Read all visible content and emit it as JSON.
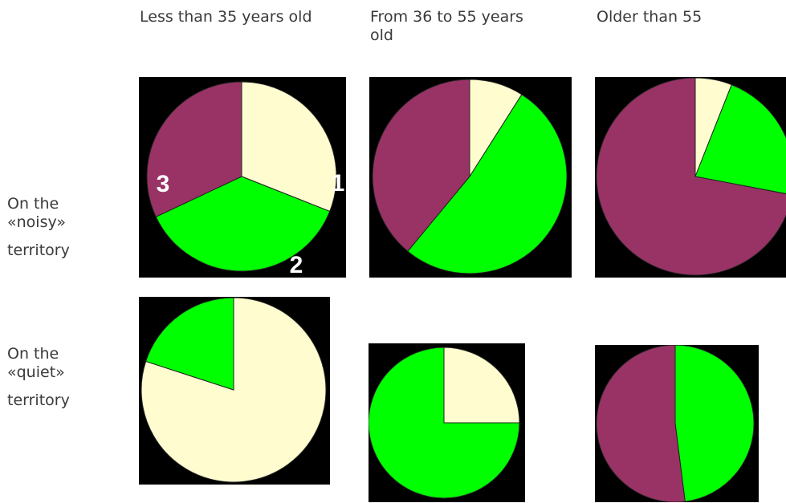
{
  "columns": [
    {
      "label": "Less than 35 years old"
    },
    {
      "label": "From 36 to 55 years"
    },
    {
      "label": "Older than 55"
    }
  ],
  "column_label_wrap": "old",
  "rows": [
    {
      "line1": "On the",
      "line2": "«noisy»",
      "line3": "territory"
    },
    {
      "line1": "On the",
      "line2": "«quiet»",
      "line3": "territory"
    }
  ],
  "colors": {
    "cat1": "#fffdd0",
    "cat2": "#00ff00",
    "cat3": "#993366",
    "background": "#000000"
  },
  "chart_data": [
    {
      "type": "pie",
      "row": "noisy",
      "column": "Less than 35 years old",
      "start_angle_deg": 0,
      "slices": [
        {
          "category": "1",
          "value": 0.31
        },
        {
          "category": "2",
          "value": 0.37
        },
        {
          "category": "3",
          "value": 0.32
        }
      ],
      "slice_labels": [
        "1",
        "2",
        "3"
      ]
    },
    {
      "type": "pie",
      "row": "noisy",
      "column": "From 36 to 55 years old",
      "start_angle_deg": 0,
      "slices": [
        {
          "category": "1",
          "value": 0.09
        },
        {
          "category": "2",
          "value": 0.52
        },
        {
          "category": "3",
          "value": 0.39
        }
      ],
      "slice_labels": []
    },
    {
      "type": "pie",
      "row": "noisy",
      "column": "Older than 55",
      "start_angle_deg": 0,
      "slices": [
        {
          "category": "1",
          "value": 0.06
        },
        {
          "category": "2",
          "value": 0.22
        },
        {
          "category": "3",
          "value": 0.72
        }
      ],
      "slice_labels": []
    },
    {
      "type": "pie",
      "row": "quiet",
      "column": "Less than 35 years old",
      "start_angle_deg": 0,
      "slices": [
        {
          "category": "1",
          "value": 0.8
        },
        {
          "category": "2",
          "value": 0.2
        }
      ],
      "slice_labels": []
    },
    {
      "type": "pie",
      "row": "quiet",
      "column": "From 36 to 55 years old",
      "start_angle_deg": 0,
      "slices": [
        {
          "category": "1",
          "value": 0.25
        },
        {
          "category": "2",
          "value": 0.75
        }
      ],
      "slice_labels": []
    },
    {
      "type": "pie",
      "row": "quiet",
      "column": "Older than 55",
      "start_angle_deg": 0,
      "slices": [
        {
          "category": "2",
          "value": 0.48
        },
        {
          "category": "3",
          "value": 0.52
        }
      ],
      "slice_labels": []
    }
  ]
}
